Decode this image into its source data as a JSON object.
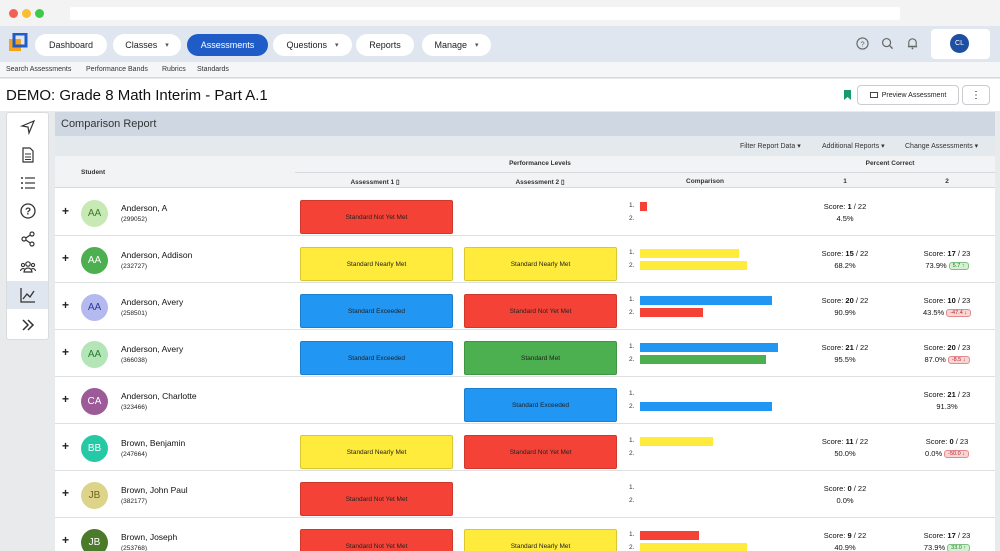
{
  "nav": {
    "items": [
      {
        "label": "Dashboard",
        "caret": false,
        "active": false
      },
      {
        "label": "Classes",
        "caret": true,
        "active": false
      },
      {
        "label": "Assessments",
        "caret": false,
        "active": true
      },
      {
        "label": "Questions",
        "caret": true,
        "active": false
      },
      {
        "label": "Reports",
        "caret": false,
        "active": false
      },
      {
        "label": "Manage",
        "caret": true,
        "active": false
      }
    ],
    "user_initials": "CL"
  },
  "subnav": {
    "items": [
      "Search Assessments",
      "Performance Bands",
      "Rubrics",
      "Standards"
    ]
  },
  "page": {
    "title": "DEMO: Grade 8 Math Interim - Part A.1",
    "preview_label": "Preview Assessment",
    "more_label": "⋮"
  },
  "report": {
    "title": "Comparison Report",
    "toolbar": [
      "Filter Report Data",
      "Additional Reports",
      "Change Assessments"
    ],
    "headers": {
      "student": "Student",
      "performance_levels": "Performance Levels",
      "assessment1": "Assessment 1",
      "assessment2": "Assessment 2",
      "comparison": "Comparison",
      "percent_correct": "Percent Correct",
      "col1": "1",
      "col2": "2"
    },
    "rows": [
      {
        "initials": "AA",
        "avatar_color": "#c7e9b4",
        "avatar_text": "#3a7a2a",
        "name": "Anderson, A",
        "id": "(299052)",
        "a1": {
          "label": "Standard Not Yet Met",
          "color": "#f44336"
        },
        "a2": null,
        "bar1": {
          "frac": 0.046,
          "color": "#f44336"
        },
        "bar2": null,
        "s1": {
          "score_prefix": "Score:",
          "earned": "1",
          "total": "/ 22",
          "pct": "4.5%"
        },
        "s2": null
      },
      {
        "initials": "AA",
        "avatar_color": "#4caf50",
        "avatar_text": "#ffffff",
        "name": "Anderson, Addison",
        "id": "(232727)",
        "a1": {
          "label": "Standard Nearly Met",
          "color": "#ffeb3b"
        },
        "a2": {
          "label": "Standard Nearly Met",
          "color": "#ffeb3b"
        },
        "bar1": {
          "frac": 0.682,
          "color": "#ffeb3b"
        },
        "bar2": {
          "frac": 0.739,
          "color": "#ffeb3b"
        },
        "s1": {
          "score_prefix": "Score:",
          "earned": "15",
          "total": "/ 22",
          "pct": "68.2%"
        },
        "s2": {
          "score_prefix": "Score:",
          "earned": "17",
          "total": "/ 23",
          "pct": "73.9%",
          "delta": "5.7 ↑",
          "dir": "up"
        }
      },
      {
        "initials": "AA",
        "avatar_color": "#b4b9ef",
        "avatar_text": "#2f3a9a",
        "name": "Anderson, Avery",
        "id": "(258501)",
        "a1": {
          "label": "Standard Exceeded",
          "color": "#2196f3"
        },
        "a2": {
          "label": "Standard Not Yet Met",
          "color": "#f44336"
        },
        "bar1": {
          "frac": 0.909,
          "color": "#2196f3"
        },
        "bar2": {
          "frac": 0.435,
          "color": "#f44336"
        },
        "s1": {
          "score_prefix": "Score:",
          "earned": "20",
          "total": "/ 22",
          "pct": "90.9%"
        },
        "s2": {
          "score_prefix": "Score:",
          "earned": "10",
          "total": "/ 23",
          "pct": "43.5%",
          "delta": "-47.4 ↓",
          "dir": "down"
        }
      },
      {
        "initials": "AA",
        "avatar_color": "#b3e5b7",
        "avatar_text": "#2f7a35",
        "name": "Anderson, Avery",
        "id": "(366038)",
        "a1": {
          "label": "Standard Exceeded",
          "color": "#2196f3"
        },
        "a2": {
          "label": "Standard Met",
          "color": "#4caf50"
        },
        "bar1": {
          "frac": 0.955,
          "color": "#2196f3"
        },
        "bar2": {
          "frac": 0.87,
          "color": "#4caf50"
        },
        "s1": {
          "score_prefix": "Score:",
          "earned": "21",
          "total": "/ 22",
          "pct": "95.5%"
        },
        "s2": {
          "score_prefix": "Score:",
          "earned": "20",
          "total": "/ 23",
          "pct": "87.0%",
          "delta": "-8.5 ↓",
          "dir": "down"
        }
      },
      {
        "initials": "CA",
        "avatar_color": "#9c5a98",
        "avatar_text": "#ffffff",
        "name": "Anderson, Charlotte",
        "id": "(323466)",
        "a1": null,
        "a2": {
          "label": "Standard Exceeded",
          "color": "#2196f3"
        },
        "bar1": null,
        "bar2": {
          "frac": 0.913,
          "color": "#2196f3"
        },
        "s1": null,
        "s2": {
          "score_prefix": "Score:",
          "earned": "21",
          "total": "/ 23",
          "pct": "91.3%"
        }
      },
      {
        "initials": "BB",
        "avatar_color": "#26c9a5",
        "avatar_text": "#ffffff",
        "name": "Brown, Benjamin",
        "id": "(247664)",
        "a1": {
          "label": "Standard Nearly Met",
          "color": "#ffeb3b"
        },
        "a2": {
          "label": "Standard Not Yet Met",
          "color": "#f44336"
        },
        "bar1": {
          "frac": 0.5,
          "color": "#ffeb3b"
        },
        "bar2": null,
        "s1": {
          "score_prefix": "Score:",
          "earned": "11",
          "total": "/ 22",
          "pct": "50.0%"
        },
        "s2": {
          "score_prefix": "Score:",
          "earned": "0",
          "total": "/ 23",
          "pct": "0.0%",
          "delta": "-50.0 ↓",
          "dir": "down"
        }
      },
      {
        "initials": "JB",
        "avatar_color": "#ddd48a",
        "avatar_text": "#6e6520",
        "name": "Brown, John Paul",
        "id": "(382177)",
        "a1": {
          "label": "Standard Not Yet Met",
          "color": "#f44336"
        },
        "a2": null,
        "bar1": null,
        "bar2": null,
        "s1": {
          "score_prefix": "Score:",
          "earned": "0",
          "total": "/ 22",
          "pct": "0.0%"
        },
        "s2": null
      },
      {
        "initials": "JB",
        "avatar_color": "#4b7a2a",
        "avatar_text": "#ffffff",
        "name": "Brown, Joseph",
        "id": "(253768)",
        "a1": {
          "label": "Standard Not Yet Met",
          "color": "#f44336"
        },
        "a2": {
          "label": "Standard Nearly Met",
          "color": "#ffeb3b"
        },
        "bar1": {
          "frac": 0.409,
          "color": "#f44336"
        },
        "bar2": {
          "frac": 0.739,
          "color": "#ffeb3b"
        },
        "s1": {
          "score_prefix": "Score:",
          "earned": "9",
          "total": "/ 22",
          "pct": "40.9%"
        },
        "s2": {
          "score_prefix": "Score:",
          "earned": "17",
          "total": "/ 23",
          "pct": "73.9%",
          "delta": "33.0 ↑",
          "dir": "up"
        }
      }
    ]
  }
}
